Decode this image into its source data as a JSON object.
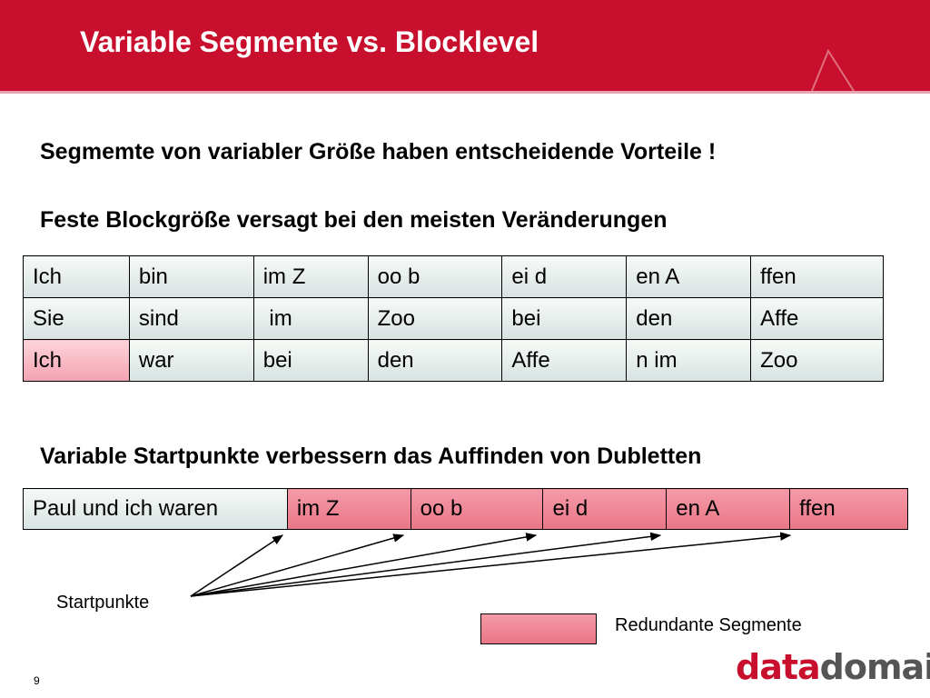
{
  "slide": {
    "title": "Variable Segmente vs. Blocklevel",
    "heading1": "Segmemte von variabler Größe haben entscheidende Vorteile !",
    "heading2": "Feste Blockgröße versagt bei den meisten Veränderungen",
    "heading3": "Variable Startpunkte verbessern das Auffinden von Dubletten",
    "page_number": "9"
  },
  "table_fixed": {
    "rows": [
      [
        "Ich",
        "bin",
        "im Z",
        "oo b",
        "ei d",
        "en A",
        "ffen"
      ],
      [
        "Sie",
        "sind",
        " im",
        "Zoo",
        "bei",
        "den",
        "Affe"
      ],
      [
        "Ich",
        "war",
        "bei",
        "den",
        "Affe",
        "n im",
        "Zoo"
      ]
    ],
    "redundant_highlight": "row 3, column 1"
  },
  "table_variable": {
    "cells": [
      "Paul und ich waren",
      "im Z",
      "oo b",
      "ei d",
      "en A",
      "ffen"
    ]
  },
  "annotations": {
    "startpoints_label": "Startpunkte",
    "legend_label": "Redundante Segmente"
  },
  "logo": {
    "part1": "data",
    "part2": "domain"
  },
  "colors": {
    "header": "#c8102e",
    "redundant_segment": "#ea7686",
    "cell_normal": "#d7e2e2"
  }
}
